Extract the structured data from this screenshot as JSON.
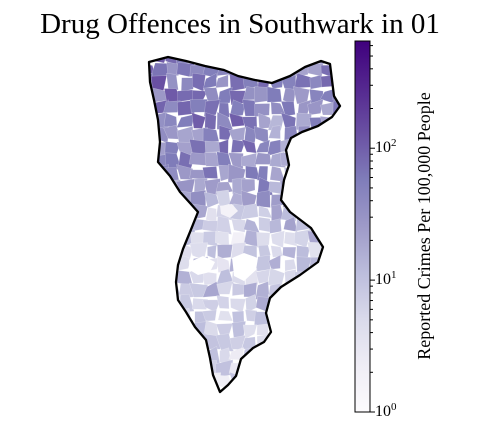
{
  "title": "Drug Offences in Southwark in 01",
  "colorbar": {
    "label": "Reported Crimes Per 100,000 People",
    "scale": "log",
    "range": [
      1,
      650
    ],
    "colormap": [
      "#fcfbfd",
      "#efedf5",
      "#dadaeb",
      "#bcbddc",
      "#9e9ac8",
      "#807dba",
      "#6a51a3",
      "#54278f",
      "#3f007d"
    ],
    "ticks": [
      {
        "base": "10",
        "exp": "0",
        "value": 1
      },
      {
        "base": "10",
        "exp": "1",
        "value": 10
      },
      {
        "base": "10",
        "exp": "2",
        "value": 100
      }
    ]
  },
  "map": {
    "region": "Southwark",
    "boundary_color": "#000000",
    "unreported_color": "#ffffff"
  }
}
